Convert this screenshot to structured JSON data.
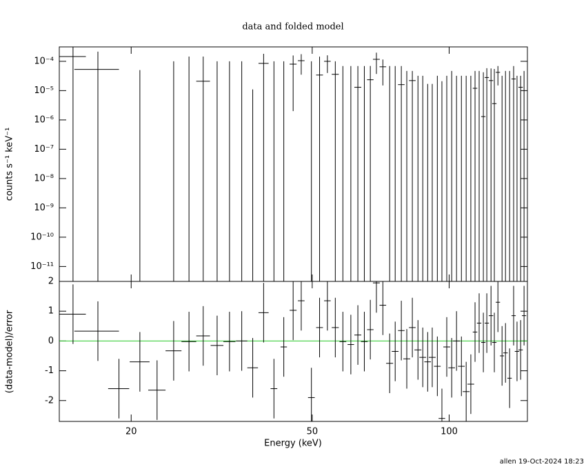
{
  "chart_data": [
    {
      "type": "scatter",
      "title": "data and folded model",
      "ylabel": "counts s⁻¹ keV⁻¹",
      "xlog": true,
      "ylog": true,
      "color": "#000000",
      "xlim": [
        13.9,
        148.6
      ],
      "ylim": [
        3.1e-12,
        0.00031
      ],
      "xticks": [
        20,
        50,
        100
      ],
      "yticks": [
        {
          "value": 1e-11,
          "label": "10⁻¹¹"
        },
        {
          "value": 1e-10,
          "label": "10⁻¹⁰"
        },
        {
          "value": 1e-09,
          "label": "10⁻⁹"
        },
        {
          "value": 1e-08,
          "label": "10⁻⁸"
        },
        {
          "value": 1e-07,
          "label": "10⁻⁷"
        },
        {
          "value": 1e-06,
          "label": "10⁻⁶"
        },
        {
          "value": 1e-05,
          "label": "10⁻⁵"
        },
        {
          "value": 0.0001,
          "label": "10⁻⁴"
        }
      ],
      "x": [
        14.9,
        16.9,
        18.8,
        20.9,
        22.8,
        24.8,
        26.8,
        28.8,
        30.9,
        32.9,
        35.0,
        37.0,
        39.1,
        41.2,
        43.3,
        45.4,
        47.3,
        49.8,
        51.9,
        54.0,
        56.2,
        58.4,
        60.8,
        63.0,
        65.1,
        67.1,
        69.2,
        71.5,
        74.0,
        76.1,
        78.5,
        80.7,
        83.0,
        85.4,
        87.5,
        89.7,
        91.8,
        94.2,
        96.4,
        98.8,
        101.3,
        103.8,
        106.4,
        109.0,
        111.6,
        114.0,
        116.4,
        118.9,
        121.0,
        123.6,
        125.7,
        128.0,
        130.7,
        133.0,
        135.8,
        138.6,
        141.0,
        143.6,
        146.1
      ],
      "xerr": [
        1.0,
        1.9,
        1.0,
        1.05,
        1.0,
        1.0,
        1.0,
        1.0,
        1.0,
        1.0,
        1.0,
        1.0,
        1.0,
        0.7,
        0.7,
        0.8,
        0.8,
        0.85,
        0.9,
        0.9,
        1.0,
        1.0,
        1.0,
        1.1,
        1.1,
        1.1,
        1.2,
        1.2,
        1.3,
        1.3,
        1.3,
        1.4,
        1.4,
        1.5,
        1.5,
        1.5,
        1.6,
        1.6,
        1.6,
        1.7,
        1.7,
        1.8,
        1.8,
        1.9,
        1.9,
        1.3,
        1.3,
        1.3,
        1.3,
        1.4,
        1.4,
        1.4,
        1.4,
        1.5,
        1.5,
        1.5,
        1.6,
        1.6,
        1.6
      ],
      "values": [
        0.000145,
        5.3e-05,
        null,
        0,
        null,
        0,
        0,
        2.1e-05,
        0,
        0,
        0,
        0,
        8.5e-05,
        0,
        0,
        8e-05,
        0.000105,
        0,
        3.4e-05,
        0.0001,
        3.6e-05,
        0,
        0,
        1.3e-05,
        0,
        2.35e-05,
        0.000117,
        6.5e-05,
        0,
        0,
        1.6e-05,
        0,
        2.2e-05,
        0,
        0,
        0,
        0,
        0,
        0,
        0,
        0,
        0,
        0,
        0,
        0,
        1.2e-05,
        0,
        1.3e-06,
        2.8e-05,
        2.2e-05,
        3.6e-06,
        4.2e-05,
        0,
        0,
        0,
        2.5e-05,
        0,
        1.3e-05,
        0
      ],
      "errors": [
        0.0002,
        0.00016,
        null,
        5e-05,
        null,
        0.0001,
        0.000145,
        0.000124,
        0.0001,
        0.0001,
        0.0001,
        1.1e-05,
        9.5e-05,
        0.0001,
        0.0001,
        7.8e-05,
        7e-05,
        0.0001,
        0.00011,
        6e-05,
        6.4e-05,
        6.9e-05,
        6.9e-05,
        5.6e-05,
        6.9e-05,
        4.6e-05,
        8e-05,
        5e-05,
        6.9e-05,
        6.9e-05,
        5.3e-05,
        4.7e-05,
        2.5e-05,
        3.2e-05,
        3.2e-05,
        1.7e-05,
        1.7e-05,
        3.2e-05,
        2.1e-05,
        3.2e-05,
        4.7e-05,
        3.2e-05,
        3.2e-05,
        3.2e-05,
        3.2e-05,
        3.5e-05,
        4.7e-05,
        4.1e-05,
        3e-05,
        3.5e-05,
        5.1e-05,
        2.7e-05,
        3.2e-05,
        4.7e-05,
        4.7e-05,
        4.4e-05,
        3.2e-05,
        1.9e-05,
        4.7e-05
      ]
    },
    {
      "type": "scatter",
      "ylabel": "(data-model)/error",
      "xlabel": "Energy (keV)",
      "xlog": true,
      "ylog": false,
      "color": "#000000",
      "xlim": [
        13.9,
        148.6
      ],
      "ylim": [
        -2.7,
        2
      ],
      "xticks": [
        20,
        50,
        100
      ],
      "yticks": [
        -2,
        -1,
        0,
        1,
        2
      ],
      "reference_line": {
        "value": 0,
        "color": "#22c822"
      },
      "x": [
        14.9,
        16.9,
        18.8,
        20.9,
        22.8,
        24.8,
        26.8,
        28.8,
        30.9,
        32.9,
        35.0,
        37.0,
        39.1,
        41.2,
        43.3,
        45.4,
        47.3,
        49.8,
        51.9,
        54.0,
        56.2,
        58.4,
        60.8,
        63.0,
        65.1,
        67.1,
        69.2,
        71.5,
        74.0,
        76.1,
        78.5,
        80.7,
        83.0,
        85.4,
        87.5,
        89.7,
        91.8,
        94.2,
        96.4,
        98.8,
        101.3,
        103.8,
        106.4,
        109.0,
        111.6,
        114.0,
        116.4,
        118.9,
        121.0,
        123.6,
        125.7,
        128.0,
        130.7,
        133.0,
        135.8,
        138.6,
        141.0,
        143.6,
        146.1
      ],
      "xerr": [
        1.0,
        1.9,
        1.0,
        1.05,
        1.0,
        1.0,
        1.0,
        1.0,
        1.0,
        1.0,
        1.0,
        1.0,
        1.0,
        0.7,
        0.7,
        0.8,
        0.8,
        0.85,
        0.9,
        0.9,
        1.0,
        1.0,
        1.0,
        1.1,
        1.1,
        1.1,
        1.2,
        1.2,
        1.3,
        1.3,
        1.3,
        1.4,
        1.4,
        1.5,
        1.5,
        1.5,
        1.6,
        1.6,
        1.6,
        1.7,
        1.7,
        1.8,
        1.8,
        1.9,
        1.9,
        1.3,
        1.3,
        1.3,
        1.3,
        1.4,
        1.4,
        1.4,
        1.4,
        1.5,
        1.5,
        1.5,
        1.6,
        1.6,
        1.6
      ],
      "values": [
        0.9,
        0.33,
        -1.6,
        -0.7,
        -1.65,
        -0.33,
        -0.02,
        0.17,
        -0.15,
        -0.02,
        0.0,
        -0.9,
        0.95,
        -1.6,
        -0.2,
        1.03,
        1.35,
        -1.9,
        0.45,
        1.35,
        0.45,
        -0.02,
        -0.12,
        0.2,
        -0.02,
        0.38,
        1.95,
        1.2,
        -0.75,
        -0.35,
        0.35,
        -0.6,
        0.45,
        -0.3,
        -0.55,
        -0.7,
        -0.55,
        -0.85,
        -2.6,
        -0.2,
        -0.9,
        0,
        -0.85,
        -1.7,
        -1.45,
        0.3,
        0.6,
        -0.05,
        0.6,
        0.85,
        -0.05,
        1.3,
        -0.5,
        -0.4,
        -1.25,
        0.85,
        -0.35,
        -0.3,
        0.85
      ],
      "errors": [
        1,
        1,
        1,
        1,
        1,
        1,
        1,
        1,
        1,
        1,
        1,
        1,
        1,
        1,
        1,
        1,
        1,
        1,
        1,
        1,
        1,
        1,
        1,
        1,
        1,
        1,
        1,
        1,
        1,
        1,
        1,
        1,
        1,
        1,
        1,
        1,
        1,
        1,
        1,
        1,
        1,
        1,
        1,
        1,
        1,
        1,
        1,
        1,
        1,
        1,
        1,
        1,
        1,
        1,
        1,
        1,
        1,
        1,
        1
      ]
    }
  ],
  "footer": "allen 19-Oct-2024 18:23"
}
